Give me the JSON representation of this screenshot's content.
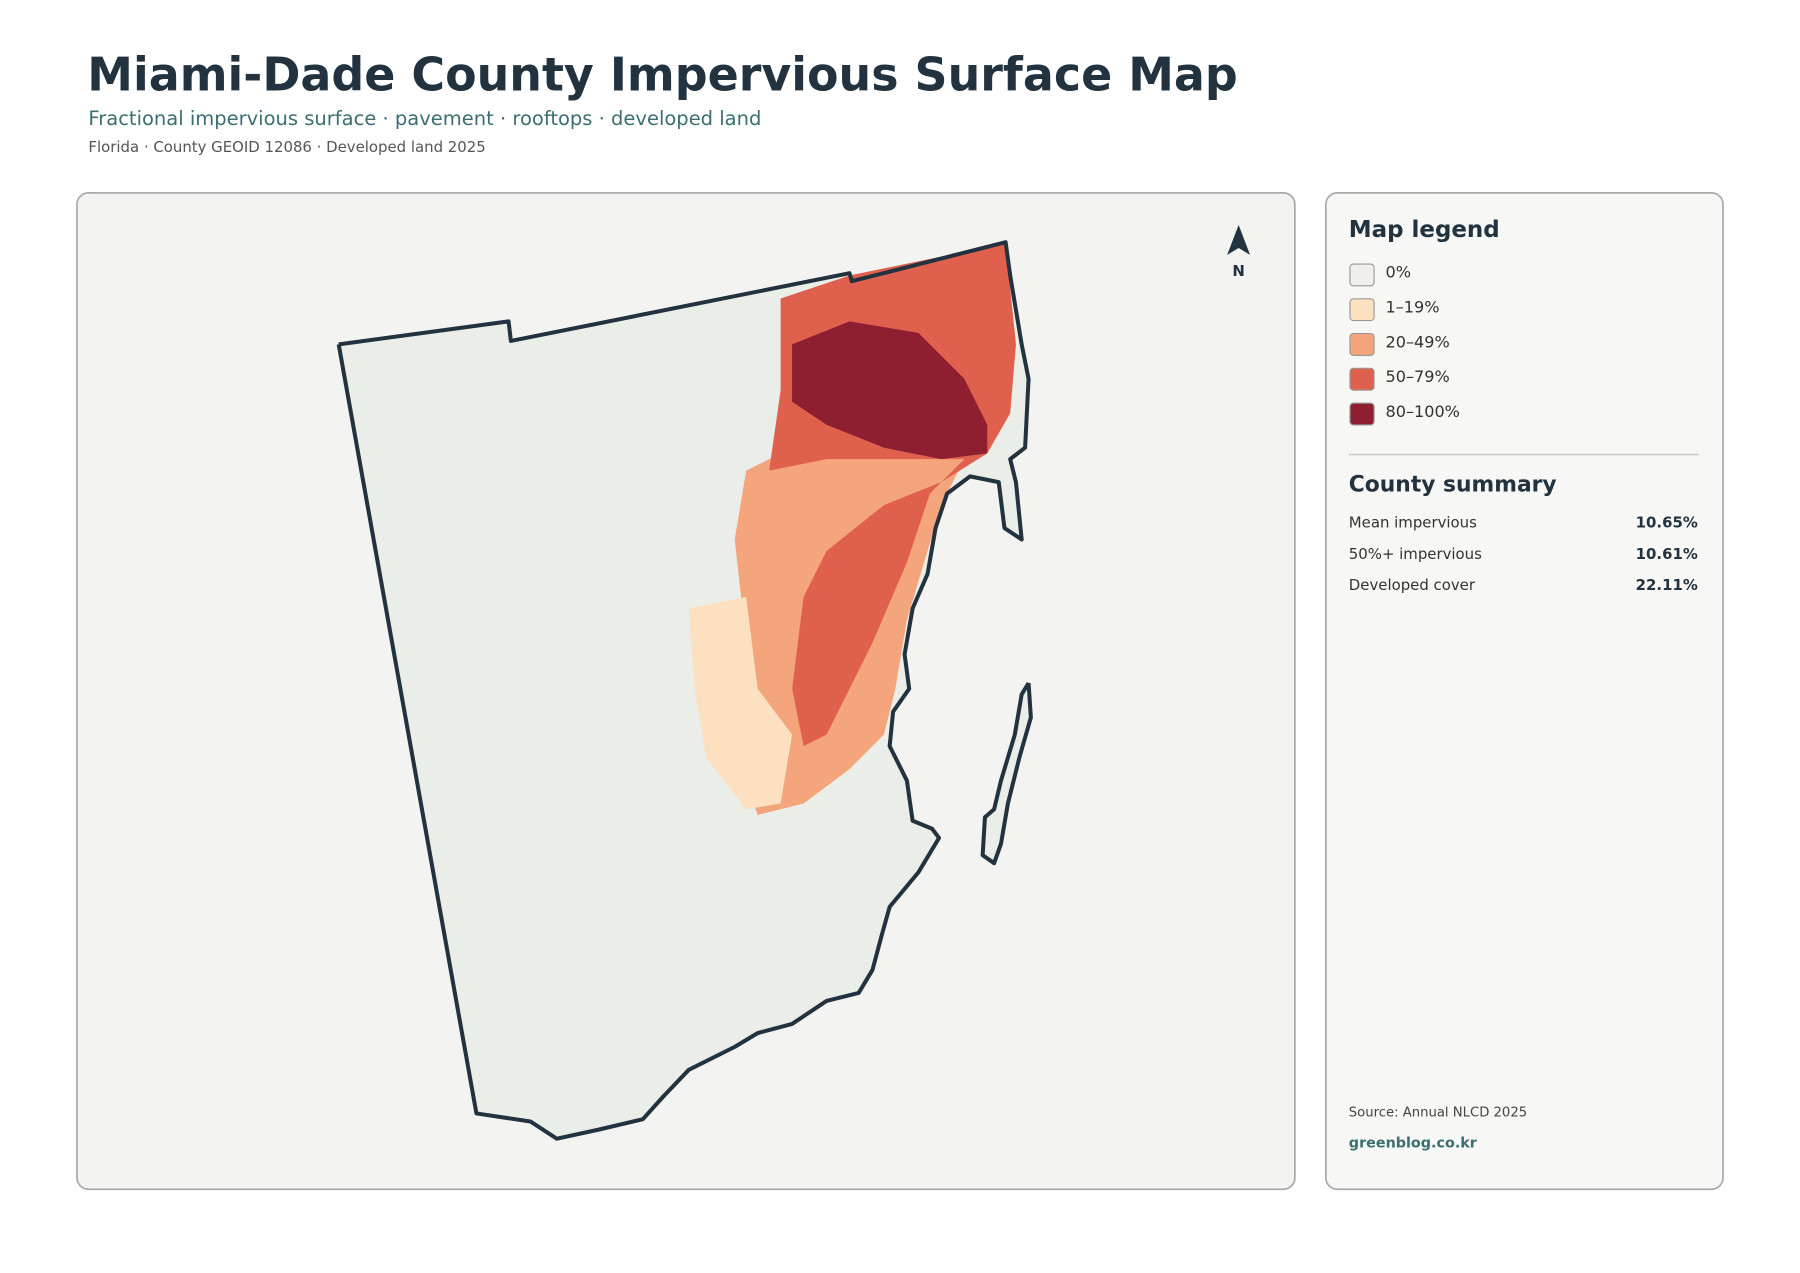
{
  "header": {
    "title": "Miami-Dade County Impervious Surface Map",
    "subtitle": "Fractional impervious surface · pavement · rooftops · developed land",
    "meta": "Florida · County GEOID 12086 · Developed land 2025"
  },
  "map": {
    "north_label": "N"
  },
  "legend": {
    "title": "Map legend",
    "items": [
      {
        "label": "0%",
        "color": "#f0efec"
      },
      {
        "label": "1–19%",
        "color": "#fde0c0"
      },
      {
        "label": "20–49%",
        "color": "#f4a57c"
      },
      {
        "label": "50–79%",
        "color": "#e0604e"
      },
      {
        "label": "80–100%",
        "color": "#8e1f31"
      }
    ]
  },
  "summary": {
    "title": "County summary",
    "rows": [
      {
        "label": "Mean impervious",
        "value": "10.65%"
      },
      {
        "label": "50%+ impervious",
        "value": "10.61%"
      },
      {
        "label": "Developed cover",
        "value": "22.11%"
      }
    ]
  },
  "footer": {
    "source": "Source: Annual NLCD 2025",
    "site": "greenblog.co.kr"
  }
}
